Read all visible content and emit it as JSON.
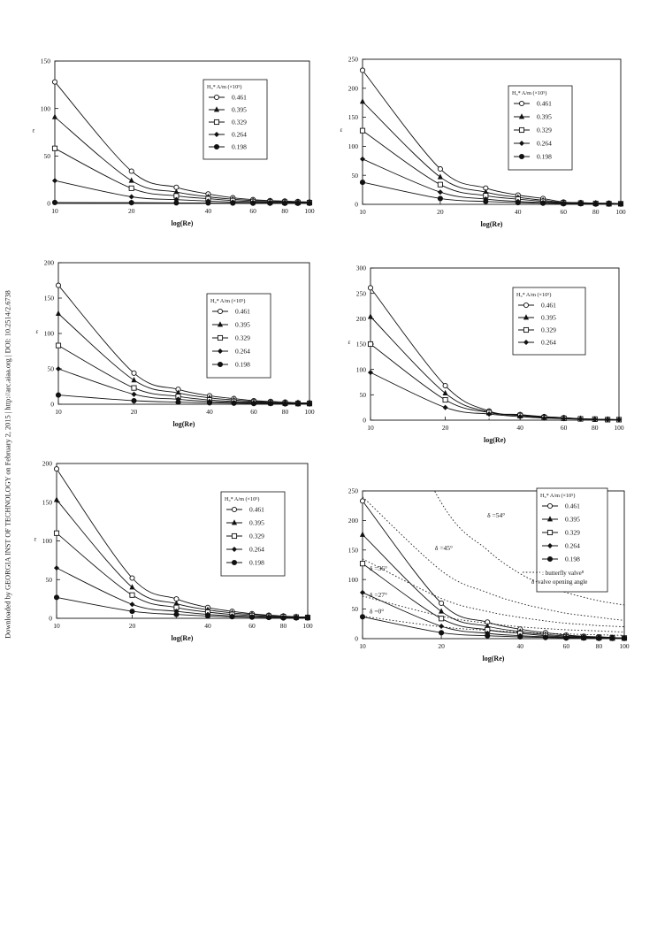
{
  "side_note": "Downloaded by GEORGIA INST OF TECHNOLOGY on February 2, 2015 | http://arc.aiaa.org | DOI: 10.2514/2.6738",
  "chart_data": [
    {
      "type": "line",
      "title": "",
      "xlabel": "log(Re)",
      "ylabel": "ε",
      "x_scale": "log",
      "xlim": [
        10,
        100
      ],
      "ylim": [
        0,
        150
      ],
      "xticks": [
        10,
        20,
        40,
        60,
        80,
        100
      ],
      "yticks": [
        0,
        50,
        100,
        150
      ],
      "x": [
        10,
        20,
        30,
        40,
        50,
        60,
        70,
        80,
        90,
        100
      ],
      "legend": {
        "title": "H₀* A/m (×10⁵)",
        "position": "upper right"
      },
      "series": [
        {
          "name": "0.461",
          "marker": "circle-open",
          "values": [
            128,
            34,
            17,
            10,
            6,
            4,
            3,
            2.5,
            2,
            1.5
          ]
        },
        {
          "name": "0.395",
          "marker": "triangle",
          "values": [
            91,
            24,
            12,
            7,
            4.5,
            3,
            2.5,
            2,
            1.5,
            1
          ]
        },
        {
          "name": "0.329",
          "marker": "square-open",
          "values": [
            58,
            16,
            8,
            5,
            3,
            2,
            1.5,
            1.2,
            1,
            0.8
          ]
        },
        {
          "name": "0.264",
          "marker": "diamond",
          "values": [
            24,
            7,
            4,
            2.5,
            1.5,
            1,
            0.8,
            0.6,
            0.5,
            0.4
          ]
        },
        {
          "name": "0.198",
          "marker": "circle-filled",
          "values": [
            1,
            0.8,
            0.6,
            0.5,
            0.4,
            0.3,
            0.3,
            0.2,
            0.2,
            0.2
          ]
        }
      ]
    },
    {
      "type": "line",
      "title": "",
      "xlabel": "log(Re)",
      "ylabel": "ε",
      "x_scale": "log",
      "xlim": [
        10,
        100
      ],
      "ylim": [
        0,
        250
      ],
      "xticks": [
        10,
        20,
        40,
        60,
        80,
        100
      ],
      "yticks": [
        0,
        50,
        100,
        150,
        200,
        250
      ],
      "x": [
        10,
        20,
        30,
        40,
        50,
        60,
        70,
        80,
        90,
        100
      ],
      "legend": {
        "title": "H₀* A/m (×10⁵)",
        "position": "upper right"
      },
      "series": [
        {
          "name": "0.461",
          "marker": "circle-open",
          "values": [
            231,
            61,
            28,
            16,
            10,
            4,
            3,
            2,
            2,
            1
          ]
        },
        {
          "name": "0.395",
          "marker": "triangle",
          "values": [
            177,
            47,
            21,
            12,
            7,
            3,
            2.5,
            2,
            1.5,
            1
          ]
        },
        {
          "name": "0.329",
          "marker": "square-open",
          "values": [
            127,
            34,
            15,
            9,
            5,
            2.5,
            2,
            1.5,
            1,
            1
          ]
        },
        {
          "name": "0.264",
          "marker": "diamond",
          "values": [
            78,
            21,
            9,
            5,
            3,
            2,
            1.5,
            1,
            1,
            0.5
          ]
        },
        {
          "name": "0.198",
          "marker": "circle-filled",
          "values": [
            38,
            10,
            5,
            3,
            2,
            1,
            1,
            0.5,
            0.5,
            0.5
          ]
        }
      ]
    },
    {
      "type": "line",
      "title": "",
      "xlabel": "log(Re)",
      "ylabel": "ε",
      "x_scale": "log",
      "xlim": [
        10,
        100
      ],
      "ylim": [
        0,
        200
      ],
      "xticks": [
        10,
        20,
        40,
        60,
        80,
        100
      ],
      "yticks": [
        0,
        50,
        100,
        150,
        200
      ],
      "x": [
        10,
        20,
        30,
        40,
        50,
        60,
        70,
        80,
        90,
        100
      ],
      "legend": {
        "title": "H₀* A/m (×10⁵)",
        "position": "upper right"
      },
      "series": [
        {
          "name": "0.461",
          "marker": "circle-open",
          "values": [
            168,
            44,
            21,
            12,
            8,
            5,
            4,
            3,
            2,
            2
          ]
        },
        {
          "name": "0.395",
          "marker": "triangle",
          "values": [
            128,
            34,
            16,
            9,
            6,
            4,
            3,
            2,
            2,
            1.5
          ]
        },
        {
          "name": "0.329",
          "marker": "square-open",
          "values": [
            83,
            23,
            11,
            6,
            4,
            3,
            2,
            1.5,
            1,
            1
          ]
        },
        {
          "name": "0.264",
          "marker": "diamond",
          "values": [
            50,
            14,
            7,
            4,
            2.5,
            2,
            1.5,
            1,
            1,
            0.5
          ]
        },
        {
          "name": "0.198",
          "marker": "circle-filled",
          "values": [
            13,
            5,
            3,
            2,
            1.5,
            1,
            1,
            0.5,
            0.5,
            0.5
          ]
        }
      ]
    },
    {
      "type": "line",
      "title": "",
      "xlabel": "log(Re)",
      "ylabel": "ε",
      "x_scale": "log",
      "xlim": [
        10,
        100
      ],
      "ylim": [
        0,
        300
      ],
      "xticks": [
        10,
        20,
        40,
        60,
        80,
        100
      ],
      "yticks": [
        0,
        50,
        100,
        150,
        200,
        250,
        300
      ],
      "x": [
        10,
        20,
        30,
        40,
        50,
        60,
        70,
        80,
        90,
        100
      ],
      "legend": {
        "title": "H₀* A/m (×10⁵)",
        "position": "upper right"
      },
      "series": [
        {
          "name": "0.461",
          "marker": "circle-open",
          "values": [
            261,
            68,
            18,
            11,
            7,
            5,
            3,
            2,
            1.5,
            1
          ]
        },
        {
          "name": "0.395",
          "marker": "triangle",
          "values": [
            204,
            53,
            16,
            10,
            6,
            4,
            3,
            2,
            1.5,
            1
          ]
        },
        {
          "name": "0.329",
          "marker": "square-open",
          "values": [
            150,
            40,
            15,
            9,
            5,
            3.5,
            2.5,
            2,
            1,
            1
          ]
        },
        {
          "name": "0.264",
          "marker": "diamond",
          "values": [
            94,
            25,
            12,
            7,
            4,
            3,
            2,
            1.5,
            1,
            1
          ]
        }
      ]
    },
    {
      "type": "line",
      "title": "",
      "xlabel": "log(Re)",
      "ylabel": "ε",
      "x_scale": "log",
      "xlim": [
        10,
        100
      ],
      "ylim": [
        0,
        200
      ],
      "xticks": [
        10,
        20,
        40,
        60,
        80,
        100
      ],
      "yticks": [
        0,
        50,
        100,
        150,
        200
      ],
      "x": [
        10,
        20,
        30,
        40,
        50,
        60,
        70,
        80,
        90,
        100
      ],
      "legend": {
        "title": "H₀* A/m (×10⁵)",
        "position": "upper right"
      },
      "series": [
        {
          "name": "0.461",
          "marker": "circle-open",
          "values": [
            193,
            52,
            25,
            14,
            9,
            6,
            4,
            3,
            2,
            1.5
          ]
        },
        {
          "name": "0.395",
          "marker": "triangle",
          "values": [
            153,
            40,
            19,
            11,
            7,
            5,
            3.5,
            2.5,
            2,
            1.5
          ]
        },
        {
          "name": "0.329",
          "marker": "square-open",
          "values": [
            110,
            30,
            14,
            8,
            5,
            3.5,
            2.5,
            2,
            1.5,
            1
          ]
        },
        {
          "name": "0.264",
          "marker": "diamond",
          "values": [
            65,
            18,
            9,
            5,
            3,
            2,
            1.5,
            1,
            1,
            0.5
          ]
        },
        {
          "name": "0.198",
          "marker": "circle-filled",
          "values": [
            27,
            9,
            5,
            3,
            2,
            1.5,
            1,
            0.5,
            0.5,
            0.5
          ]
        }
      ]
    },
    {
      "type": "line",
      "title": "",
      "xlabel": "log(Re)",
      "ylabel": "",
      "x_scale": "log",
      "xlim": [
        10,
        100
      ],
      "ylim": [
        0,
        250
      ],
      "xticks": [
        10,
        20,
        40,
        60,
        80,
        100
      ],
      "yticks": [
        0,
        50,
        100,
        150,
        200,
        250
      ],
      "x": [
        10,
        20,
        30,
        40,
        50,
        60,
        70,
        80,
        90,
        100
      ],
      "legend": {
        "title": "H₀* A/m (×10⁵)",
        "position": "upper right",
        "notes": [
          ": butterfly valve⁸",
          "δ :valve opening angle"
        ]
      },
      "series": [
        {
          "name": "0.461",
          "marker": "circle-open",
          "values": [
            233,
            60,
            28,
            16,
            10,
            6,
            4,
            3,
            2,
            1
          ]
        },
        {
          "name": "0.395",
          "marker": "triangle",
          "values": [
            176,
            46,
            21,
            12,
            7,
            4.5,
            3,
            2,
            1.5,
            1
          ]
        },
        {
          "name": "0.329",
          "marker": "square-open",
          "values": [
            127,
            34,
            15,
            9,
            5,
            3,
            2,
            1.5,
            1,
            1
          ]
        },
        {
          "name": "0.264",
          "marker": "diamond",
          "values": [
            78,
            21,
            9,
            5,
            3,
            2,
            1.5,
            1,
            1,
            0.5
          ]
        },
        {
          "name": "0.198",
          "marker": "circle-filled",
          "values": [
            37,
            10,
            5,
            3,
            2,
            1,
            1,
            0.5,
            0.5,
            0.5
          ]
        }
      ],
      "reference_curves": [
        {
          "label": "δ =54°",
          "values": [
            500,
            230,
            150,
            110,
            90,
            78,
            70,
            64,
            60,
            57
          ]
        },
        {
          "label": "δ =45°",
          "values": [
            240,
            115,
            78,
            60,
            50,
            43,
            39,
            36,
            33,
            31
          ]
        },
        {
          "label": "δ =36°",
          "values": [
            135,
            68,
            46,
            36,
            30,
            26,
            24,
            22,
            21,
            20
          ]
        },
        {
          "label": "δ =27°",
          "values": [
            72,
            38,
            26,
            20,
            17,
            15,
            14,
            13,
            12,
            11
          ]
        },
        {
          "label": "δ =0°",
          "values": [
            38,
            20,
            14,
            11,
            9,
            8,
            7,
            6.5,
            6,
            5.5
          ]
        }
      ]
    }
  ]
}
